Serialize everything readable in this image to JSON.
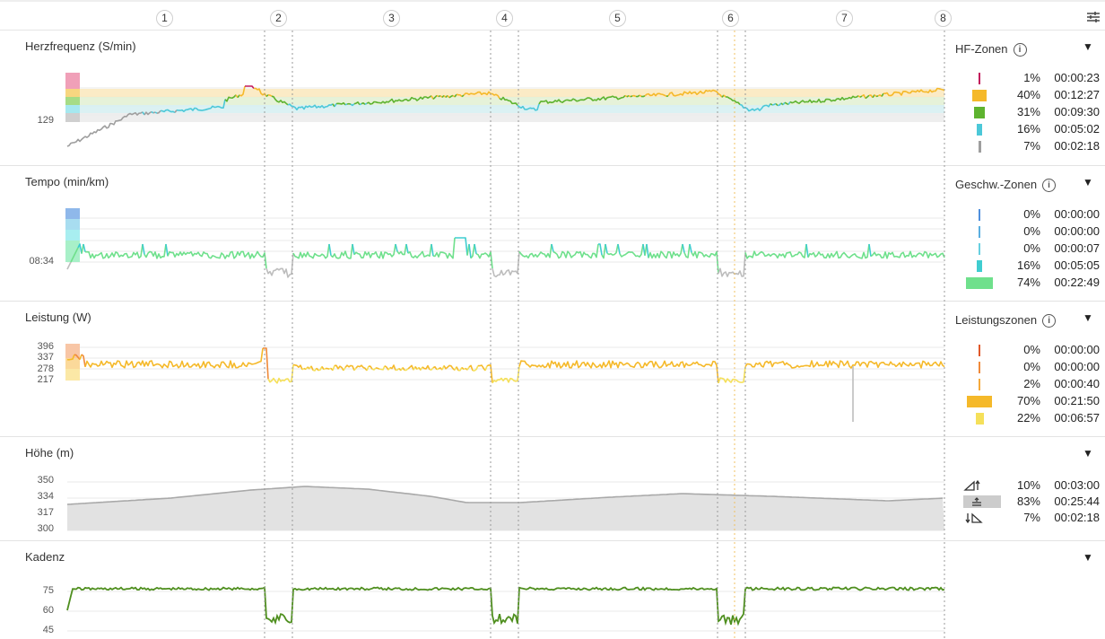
{
  "laps": [
    "1",
    "2",
    "3",
    "4",
    "5",
    "6",
    "7",
    "8"
  ],
  "heart_rate": {
    "title": "Herzfrequenz (S/min)",
    "axis_value": "129",
    "zones_title": "HF-Zonen",
    "zones": [
      {
        "pct": "1%",
        "time": "00:00:23",
        "color": "#c2185b",
        "fraction": 0.01
      },
      {
        "pct": "40%",
        "time": "00:12:27",
        "color": "#f5b92a",
        "fraction": 0.4
      },
      {
        "pct": "31%",
        "time": "00:09:30",
        "color": "#5eb32f",
        "fraction": 0.31
      },
      {
        "pct": "16%",
        "time": "00:05:02",
        "color": "#4cc8d8",
        "fraction": 0.16
      },
      {
        "pct": "7%",
        "time": "00:02:18",
        "color": "#9e9e9e",
        "fraction": 0.07
      }
    ]
  },
  "pace": {
    "title": "Tempo (min/km)",
    "axis_value": "08:34",
    "zones_title": "Geschw.-Zonen",
    "zones": [
      {
        "pct": "0%",
        "time": "00:00:00",
        "color": "#4f8fdd",
        "fraction": 0.0
      },
      {
        "pct": "0%",
        "time": "00:00:00",
        "color": "#5aaee0",
        "fraction": 0.0
      },
      {
        "pct": "0%",
        "time": "00:00:07",
        "color": "#67cfe0",
        "fraction": 0.0
      },
      {
        "pct": "16%",
        "time": "00:05:05",
        "color": "#3fcdd0",
        "fraction": 0.16
      },
      {
        "pct": "74%",
        "time": "00:22:49",
        "color": "#6fe08c",
        "fraction": 0.74
      }
    ]
  },
  "power": {
    "title": "Leistung (W)",
    "axis_values": [
      "396",
      "337",
      "278",
      "217"
    ],
    "zones_title": "Leistungszonen",
    "zones": [
      {
        "pct": "0%",
        "time": "00:00:00",
        "color": "#e0582a",
        "fraction": 0.0
      },
      {
        "pct": "0%",
        "time": "00:00:00",
        "color": "#f08a3a",
        "fraction": 0.0
      },
      {
        "pct": "2%",
        "time": "00:00:40",
        "color": "#f5a93a",
        "fraction": 0.02
      },
      {
        "pct": "70%",
        "time": "00:21:50",
        "color": "#f5b92a",
        "fraction": 0.7
      },
      {
        "pct": "22%",
        "time": "00:06:57",
        "color": "#f5e05a",
        "fraction": 0.22
      }
    ]
  },
  "elevation": {
    "title": "Höhe (m)",
    "axis_values": [
      "350",
      "334",
      "317",
      "300"
    ],
    "zones": [
      {
        "icon": "uphill-icon",
        "pct": "10%",
        "time": "00:03:00"
      },
      {
        "icon": "flat-icon",
        "pct": "83%",
        "time": "00:25:44"
      },
      {
        "icon": "downhill-icon",
        "pct": "7%",
        "time": "00:02:18"
      }
    ]
  },
  "cadence": {
    "title": "Kadenz",
    "axis_values": [
      "75",
      "60",
      "45"
    ]
  },
  "toggle_icon": "▼",
  "info_icon": "i",
  "colors": {
    "grid": "#e8e8e8",
    "lap_divider": "#9a9a9a",
    "marker": "#f0c060",
    "hr_green": "#5eb32f",
    "hr_orange": "#f5b92a",
    "hr_cyan": "#4cc8d8",
    "hr_gray": "#9e9e9e",
    "hr_red": "#c2185b",
    "pace_green": "#6fe08c",
    "pace_cyan": "#3fcdd0",
    "pace_gray": "#bdbdbd",
    "power_orange": "#f5b92a",
    "power_yellow": "#f5e05a",
    "power_red": "#f08a3a",
    "elev_fill": "#e2e2e2",
    "elev_line": "#a9a9a9",
    "cadence": "#4f8f1f"
  }
}
